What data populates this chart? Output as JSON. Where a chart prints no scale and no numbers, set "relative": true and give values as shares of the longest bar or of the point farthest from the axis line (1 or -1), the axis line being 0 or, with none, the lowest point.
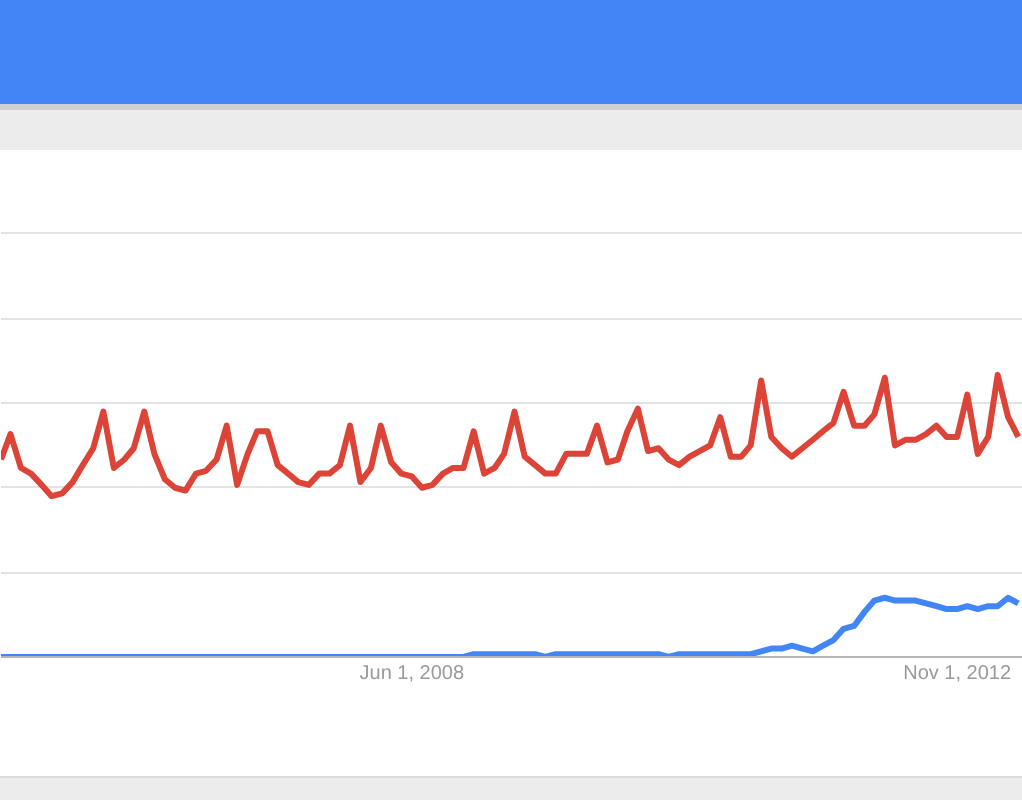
{
  "chart_data": {
    "type": "line",
    "relative": true,
    "grid": "y",
    "x": [
      "2005-02",
      "2005-03",
      "2005-04",
      "2005-05",
      "2005-06",
      "2005-07",
      "2005-08",
      "2005-09",
      "2005-10",
      "2005-11",
      "2005-12",
      "2006-01",
      "2006-02",
      "2006-03",
      "2006-04",
      "2006-05",
      "2006-06",
      "2006-07",
      "2006-08",
      "2006-09",
      "2006-10",
      "2006-11",
      "2006-12",
      "2007-01",
      "2007-02",
      "2007-03",
      "2007-04",
      "2007-05",
      "2007-06",
      "2007-07",
      "2007-08",
      "2007-09",
      "2007-10",
      "2007-11",
      "2007-12",
      "2008-01",
      "2008-02",
      "2008-03",
      "2008-04",
      "2008-05",
      "2008-06",
      "2008-07",
      "2008-08",
      "2008-09",
      "2008-10",
      "2008-11",
      "2008-12",
      "2009-01",
      "2009-02",
      "2009-03",
      "2009-04",
      "2009-05",
      "2009-06",
      "2009-07",
      "2009-08",
      "2009-09",
      "2009-10",
      "2009-11",
      "2009-12",
      "2010-01",
      "2010-02",
      "2010-03",
      "2010-04",
      "2010-05",
      "2010-06",
      "2010-07",
      "2010-08",
      "2010-09",
      "2010-10",
      "2010-11",
      "2010-12",
      "2011-01",
      "2011-02",
      "2011-03",
      "2011-04",
      "2011-05",
      "2011-06",
      "2011-07",
      "2011-08",
      "2011-09",
      "2011-10",
      "2011-11",
      "2011-12",
      "2012-01",
      "2012-02",
      "2012-03",
      "2012-04",
      "2012-05",
      "2012-06",
      "2012-07",
      "2012-08",
      "2012-09",
      "2012-10",
      "2012-11",
      "2012-12",
      "2013-01",
      "2013-02",
      "2013-03",
      "2013-04",
      "2013-05"
    ],
    "xlim": [
      "2005-02-01",
      "2013-05-15"
    ],
    "xticks": [
      {
        "value": "2008-06-01",
        "label": "Jun 1, 2008"
      },
      {
        "value": "2012-11-01",
        "label": "Nov 1, 2012"
      }
    ],
    "series": [
      {
        "color": "#db4437",
        "values": [
          0.7,
          0.79,
          0.67,
          0.65,
          0.61,
          0.57,
          0.58,
          0.62,
          0.68,
          0.74,
          0.87,
          0.67,
          0.7,
          0.74,
          0.87,
          0.72,
          0.63,
          0.6,
          0.59,
          0.65,
          0.66,
          0.7,
          0.82,
          0.61,
          0.72,
          0.8,
          0.8,
          0.68,
          0.65,
          0.62,
          0.61,
          0.65,
          0.65,
          0.68,
          0.82,
          0.62,
          0.67,
          0.82,
          0.69,
          0.65,
          0.64,
          0.6,
          0.61,
          0.65,
          0.67,
          0.67,
          0.8,
          0.65,
          0.67,
          0.72,
          0.87,
          0.71,
          0.68,
          0.65,
          0.65,
          0.72,
          0.72,
          0.72,
          0.82,
          0.69,
          0.7,
          0.8,
          0.88,
          0.73,
          0.74,
          0.7,
          0.68,
          0.71,
          0.73,
          0.75,
          0.85,
          0.71,
          0.71,
          0.75,
          0.98,
          0.78,
          0.74,
          0.71,
          0.74,
          0.77,
          0.8,
          0.83,
          0.94,
          0.82,
          0.82,
          0.86,
          0.99,
          0.75,
          0.77,
          0.77,
          0.79,
          0.82,
          0.78,
          0.78,
          0.93,
          0.72,
          0.78,
          1.0,
          0.85,
          0.78
        ]
      },
      {
        "color": "#4285f4",
        "values": [
          0,
          0,
          0,
          0,
          0,
          0,
          0,
          0,
          0,
          0,
          0,
          0,
          0,
          0,
          0,
          0,
          0,
          0,
          0,
          0,
          0,
          0,
          0,
          0,
          0,
          0,
          0,
          0,
          0,
          0,
          0,
          0,
          0,
          0,
          0,
          0,
          0,
          0,
          0,
          0,
          0,
          0,
          0,
          0,
          0,
          0,
          0.01,
          0.01,
          0.01,
          0.01,
          0.01,
          0.01,
          0.01,
          0,
          0.01,
          0.01,
          0.01,
          0.01,
          0.01,
          0.01,
          0.01,
          0.01,
          0.01,
          0.01,
          0.01,
          0,
          0.01,
          0.01,
          0.01,
          0.01,
          0.01,
          0.01,
          0.01,
          0.01,
          0.02,
          0.03,
          0.03,
          0.04,
          0.03,
          0.02,
          0.04,
          0.06,
          0.1,
          0.11,
          0.16,
          0.2,
          0.21,
          0.2,
          0.2,
          0.2,
          0.19,
          0.18,
          0.17,
          0.17,
          0.18,
          0.17,
          0.18,
          0.18,
          0.21,
          0.19
        ]
      }
    ]
  }
}
